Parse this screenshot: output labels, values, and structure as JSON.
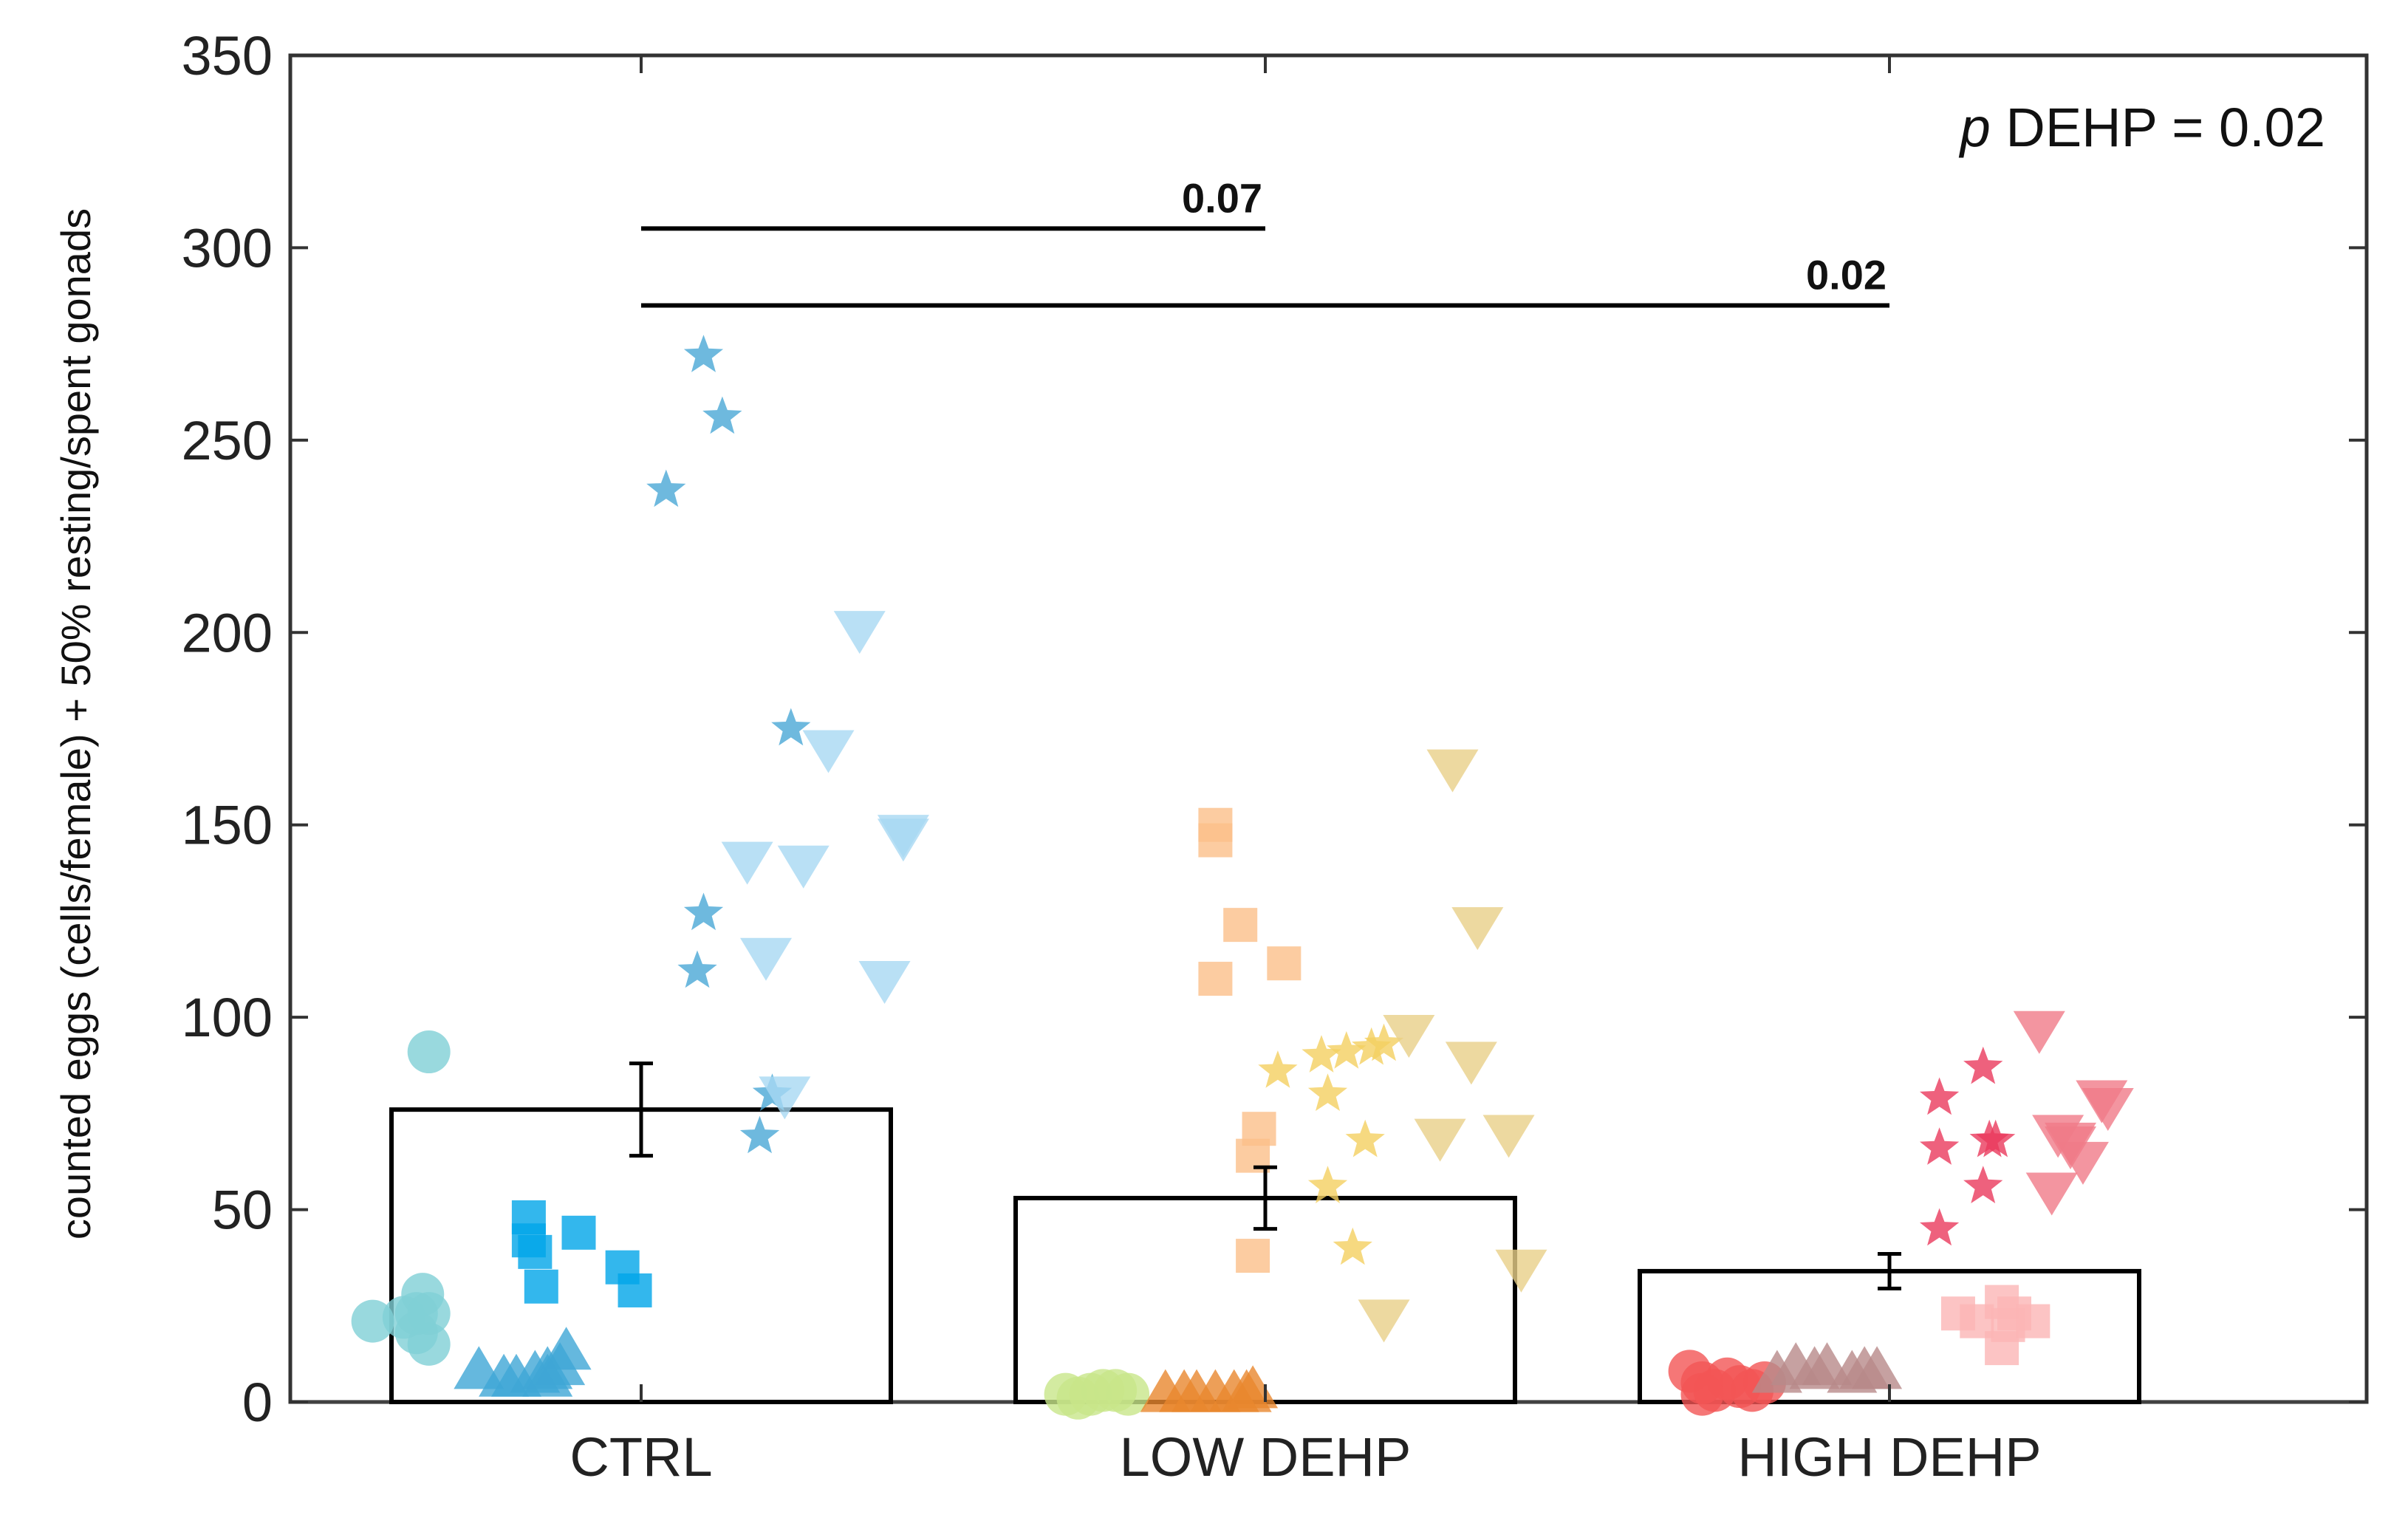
{
  "chart_data": {
    "type": "bar",
    "title": "",
    "xlabel": "",
    "ylabel": "counted eggs (cells/female) + 50% resting/spent gonads",
    "ylim": [
      0,
      350
    ],
    "yticks": [
      0,
      50,
      100,
      150,
      200,
      250,
      300,
      350
    ],
    "grid": false,
    "categories": [
      "CTRL",
      "LOW DEHP",
      "HIGH DEHP"
    ],
    "values": [
      76,
      53,
      34
    ],
    "errors": [
      12,
      8,
      4.5
    ],
    "annotation": {
      "p_symbol": "p",
      "rest": " DEHP = 0.02"
    },
    "significance": [
      {
        "from": 0,
        "to": 1,
        "y": 305,
        "label": "0.07"
      },
      {
        "from": 0,
        "to": 2,
        "y": 285,
        "label": "0.02"
      }
    ],
    "points": [
      {
        "group": 0,
        "marker": "circle",
        "color": "#7fcfd6",
        "x": [
          -0.43,
          -0.38,
          -0.36,
          -0.35,
          -0.34,
          -0.36,
          -0.34,
          -0.34
        ],
        "y": [
          21,
          22,
          23,
          28,
          23,
          18,
          15,
          91
        ]
      },
      {
        "group": 0,
        "marker": "triangle-up",
        "color": "#3fa6d6",
        "x": [
          -0.26,
          -0.22,
          -0.2,
          -0.17,
          -0.15,
          -0.13,
          -0.12,
          -0.15
        ],
        "y": [
          8,
          6,
          6,
          7,
          8,
          9,
          13,
          6
        ]
      },
      {
        "group": 0,
        "marker": "square",
        "color": "#00a5e8",
        "x": [
          -0.18,
          -0.18,
          -0.17,
          -0.16,
          -0.1,
          -0.03,
          -0.01
        ],
        "y": [
          48,
          42,
          39,
          30,
          44,
          35,
          29
        ]
      },
      {
        "group": 0,
        "marker": "star",
        "color": "#4aa8d6",
        "x": [
          0.1,
          0.13,
          0.04,
          0.24,
          0.1,
          0.09,
          0.21,
          0.19
        ],
        "y": [
          272,
          256,
          237,
          175,
          127,
          112,
          80,
          69
        ]
      },
      {
        "group": 0,
        "marker": "triangle-down",
        "color": "#a8d8f2",
        "x": [
          0.35,
          0.3,
          0.42,
          0.17,
          0.26,
          0.42,
          0.2,
          0.23,
          0.39
        ],
        "y": [
          201,
          170,
          148,
          141,
          140,
          147,
          116,
          80,
          110
        ]
      },
      {
        "group": 1,
        "marker": "circle",
        "color": "#c8e68a",
        "x": [
          -0.32,
          -0.28,
          -0.26,
          -0.24,
          -0.22,
          -0.3
        ],
        "y": [
          2,
          2,
          3,
          3,
          2,
          1
        ]
      },
      {
        "group": 1,
        "marker": "triangle-up",
        "color": "#e8872e",
        "x": [
          -0.16,
          -0.13,
          -0.11,
          -0.08,
          -0.05,
          -0.03,
          -0.02
        ],
        "y": [
          2,
          2,
          2,
          2,
          2,
          2,
          3
        ]
      },
      {
        "group": 1,
        "marker": "square",
        "color": "#fbbf8a",
        "x": [
          -0.08,
          -0.08,
          -0.04,
          -0.08,
          0.03,
          -0.01,
          -0.02,
          -0.02
        ],
        "y": [
          150,
          146,
          124,
          110,
          114,
          71,
          64,
          38
        ]
      },
      {
        "group": 1,
        "marker": "star",
        "color": "#f4cf60",
        "x": [
          0.02,
          0.09,
          0.13,
          0.17,
          0.19,
          0.1,
          0.16,
          0.1,
          0.14
        ],
        "y": [
          86,
          90,
          91,
          92,
          93,
          80,
          68,
          56,
          40
        ]
      },
      {
        "group": 1,
        "marker": "triangle-down",
        "color": "#e8cf88",
        "x": [
          0.3,
          0.34,
          0.23,
          0.33,
          0.28,
          0.39,
          0.41,
          0.19
        ],
        "y": [
          165,
          124,
          96,
          89,
          69,
          70,
          35,
          22
        ]
      },
      {
        "group": 2,
        "marker": "circle",
        "color": "#f25555",
        "x": [
          -0.32,
          -0.3,
          -0.28,
          -0.26,
          -0.24,
          -0.22,
          -0.2,
          -0.3
        ],
        "y": [
          8,
          5,
          3,
          6,
          4,
          3,
          5,
          2
        ]
      },
      {
        "group": 2,
        "marker": "triangle-up",
        "color": "#b88a8a",
        "x": [
          -0.18,
          -0.15,
          -0.12,
          -0.1,
          -0.06,
          -0.04,
          -0.02
        ],
        "y": [
          7,
          9,
          8,
          9,
          7,
          8,
          8
        ]
      },
      {
        "group": 2,
        "marker": "square",
        "color": "#fbb5b5",
        "x": [
          0.11,
          0.14,
          0.19,
          0.18,
          0.2,
          0.23,
          0.18
        ],
        "y": [
          23,
          21,
          20,
          26,
          23,
          21,
          14
        ]
      },
      {
        "group": 2,
        "marker": "star",
        "color": "#ea3a5c",
        "x": [
          0.08,
          0.15,
          0.08,
          0.16,
          0.17,
          0.15,
          0.08
        ],
        "y": [
          79,
          87,
          66,
          68,
          68,
          56,
          45
        ]
      },
      {
        "group": 2,
        "marker": "triangle-down",
        "color": "#f07a88",
        "x": [
          0.24,
          0.34,
          0.35,
          0.27,
          0.29,
          0.31,
          0.26,
          0.29
        ],
        "y": [
          97,
          79,
          77,
          70,
          68,
          63,
          55,
          67
        ]
      }
    ]
  }
}
